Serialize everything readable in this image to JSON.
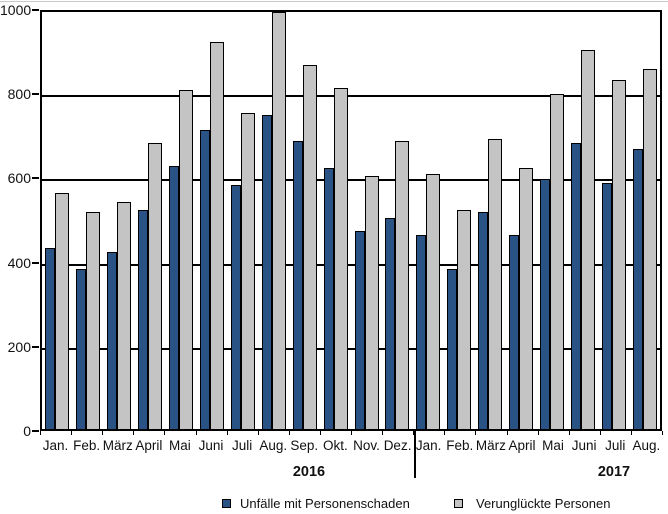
{
  "chart_data": {
    "type": "bar",
    "title": "",
    "xlabel": "",
    "ylabel": "",
    "categories": [
      "Jan.",
      "Feb.",
      "März",
      "April",
      "Mai",
      "Juni",
      "Juli",
      "Aug.",
      "Sep.",
      "Okt.",
      "Nov.",
      "Dez.",
      "Jan.",
      "Feb.",
      "März",
      "April",
      "Mai",
      "Juni",
      "Juli",
      "Aug."
    ],
    "year_groups": [
      {
        "label": "2016",
        "start_index": 0,
        "months": 12
      },
      {
        "label": "2017",
        "start_index": 12,
        "months": 8
      }
    ],
    "series": [
      {
        "name": "Unfälle mit Personenschaden",
        "color": "#2a5385",
        "values": [
          430,
          380,
          420,
          520,
          625,
          710,
          580,
          745,
          685,
          620,
          470,
          500,
          460,
          380,
          515,
          460,
          595,
          680,
          585,
          665
        ]
      },
      {
        "name": "Verunglückte Personen",
        "color": "#c4c4c4",
        "values": [
          560,
          515,
          540,
          680,
          805,
          920,
          750,
          990,
          865,
          810,
          600,
          685,
          605,
          520,
          690,
          620,
          795,
          900,
          830,
          855
        ]
      }
    ],
    "ylim": [
      0,
      1000
    ],
    "yticks": [
      0,
      200,
      400,
      600,
      800,
      1000
    ],
    "grid": true,
    "legend_position": "bottom",
    "bar_outline_color": "#000000"
  },
  "legend": {
    "items": [
      {
        "label": "Unfälle mit Personenschaden",
        "color": "#2a5385"
      },
      {
        "label": "Verunglückte Personen",
        "color": "#c4c4c4"
      }
    ]
  }
}
